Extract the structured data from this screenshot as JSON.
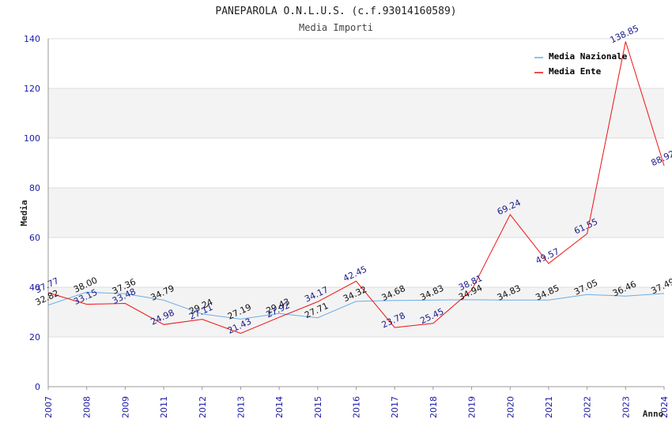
{
  "chart_data": {
    "type": "line",
    "title": "PANEPAROLA O.N.L.U.S. (c.f.93014160589)",
    "subtitle": "Media Importi",
    "xlabel": "Anno",
    "ylabel": "Media",
    "ylim": [
      0,
      140
    ],
    "yticks": [
      "0",
      "20",
      "40",
      "60",
      "80",
      "100",
      "120",
      "140"
    ],
    "categories": [
      "2007",
      "2008",
      "2009",
      "2011",
      "2012",
      "2013",
      "2014",
      "2015",
      "2016",
      "2017",
      "2018",
      "2019",
      "2020",
      "2021",
      "2022",
      "2023",
      "2024"
    ],
    "grid": "horizontal alternating bands",
    "legend_position": "top-right",
    "series": [
      {
        "name": "Media Nazionale",
        "color": "#6aaee8",
        "values": [
          32.82,
          38.0,
          37.36,
          34.79,
          29.24,
          27.19,
          29.43,
          27.71,
          34.32,
          34.68,
          34.83,
          34.94,
          34.83,
          34.85,
          37.05,
          36.46,
          37.49
        ],
        "labels": [
          "32.82",
          "38.00",
          "37.36",
          "34.79",
          "29.24",
          "27.19",
          "29.43",
          "27.71",
          "34.32",
          "34.68",
          "34.83",
          "34.94",
          "34.83",
          "34.85",
          "37.05",
          "36.46",
          "37.49"
        ]
      },
      {
        "name": "Media Ente",
        "color": "#ee1111",
        "values": [
          37.77,
          33.15,
          33.48,
          24.98,
          27.11,
          21.43,
          27.92,
          34.17,
          42.45,
          23.78,
          25.45,
          38.81,
          69.24,
          49.57,
          61.55,
          138.85,
          88.92
        ],
        "labels": [
          "37.77",
          "33.15",
          "33.48",
          "24.98",
          "27.11",
          "21.43",
          "27.92",
          "34.17",
          "42.45",
          "23.78",
          "25.45",
          "38.81",
          "69.24",
          "49.57",
          "61.55",
          "138.85",
          "88.92"
        ]
      }
    ]
  }
}
